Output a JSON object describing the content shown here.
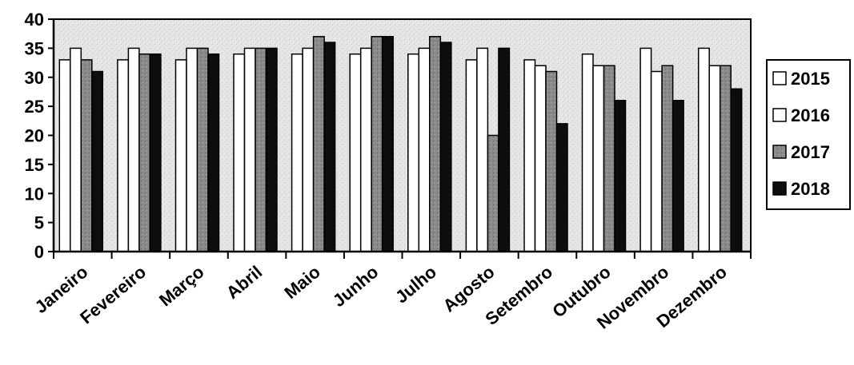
{
  "chart_data": {
    "type": "bar",
    "title": "",
    "xlabel": "",
    "ylabel": "",
    "ylim": [
      0,
      40
    ],
    "yticks": [
      0,
      5,
      10,
      15,
      20,
      25,
      30,
      35,
      40
    ],
    "grid": false,
    "legend_position": "right",
    "categories": [
      "Janeiro",
      "Fevereiro",
      "Março",
      "Abril",
      "Maio",
      "Junho",
      "Julho",
      "Agosto",
      "Setembro",
      "Outubro",
      "Novembro",
      "Dezembro"
    ],
    "series": [
      {
        "name": "2015",
        "color": "#ffffff",
        "values": [
          33,
          33,
          33,
          34,
          34,
          34,
          34,
          33,
          33,
          34,
          35,
          35
        ]
      },
      {
        "name": "2016",
        "color": "#ffffff",
        "values": [
          35,
          35,
          35,
          35,
          35,
          35,
          35,
          35,
          32,
          32,
          31,
          32
        ]
      },
      {
        "name": "2017",
        "color": "#8a8a8a",
        "values": [
          33,
          34,
          35,
          35,
          37,
          37,
          37,
          20,
          31,
          32,
          32,
          32
        ]
      },
      {
        "name": "2018",
        "color": "#0d0d0d",
        "values": [
          31,
          34,
          34,
          35,
          36,
          37,
          36,
          35,
          22,
          26,
          26,
          28
        ]
      }
    ]
  }
}
